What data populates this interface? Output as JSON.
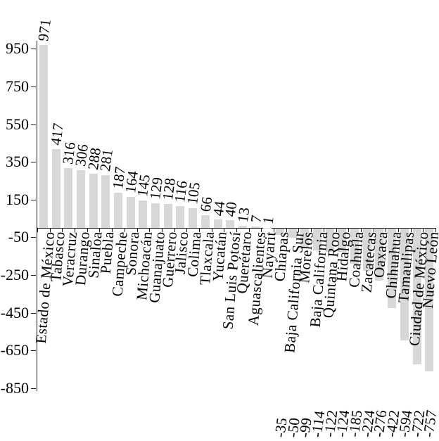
{
  "chart_data": {
    "type": "bar",
    "title": "",
    "xlabel": "",
    "ylabel": "",
    "legend": "none",
    "grid": false,
    "orientation": "vertical",
    "categories": [
      "Estado de México",
      "Tabasco",
      "Veracruz",
      "Durango",
      "Sinaloa",
      "Puebla",
      "Campeche",
      "Sonora",
      "Michoacán",
      "Guanajuato",
      "Guerrero",
      "Jalisco",
      "Colima",
      "Tlaxcala",
      "Yucatán",
      "San Luis Potosí",
      "Querétaro",
      "Aguascalientes",
      "Nayarit",
      "Chiapas",
      "Baja California Sur",
      "Morelos",
      "Baja California",
      "Quintana Roo",
      "Hidalgo",
      "Coahuila",
      "Zacatecas",
      "Oaxaca",
      "Chihuahua",
      "Tamaulipas",
      "Ciudad de México",
      "Nuevo León"
    ],
    "values": [
      971,
      417,
      316,
      306,
      288,
      281,
      187,
      164,
      145,
      129,
      128,
      116,
      105,
      66,
      44,
      40,
      13,
      7,
      1,
      -35,
      -50,
      -99,
      -114,
      -122,
      -124,
      -185,
      -224,
      -276,
      -422,
      -594,
      -722,
      -757
    ],
    "y_ticks": [
      950,
      750,
      550,
      350,
      150,
      -50,
      -250,
      -450,
      -650,
      -850
    ],
    "ylim": [
      -880,
      1010
    ],
    "data_labels": "rotated 90, outside end",
    "bar_color": "#d8d8d8",
    "axis_color": "#1a1a1a",
    "text_color": "#000000"
  }
}
